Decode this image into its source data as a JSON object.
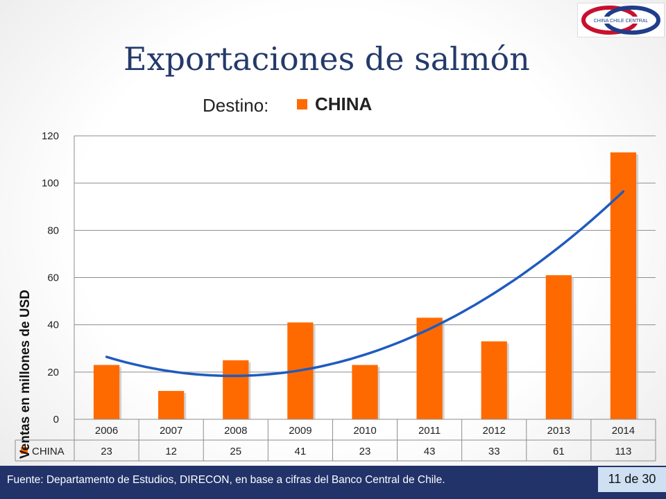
{
  "slide": {
    "title": "Exportaciones de salmón",
    "legend_prefix": "Destino:",
    "logo_text": "CHINA CHILE CENTRAL",
    "footer_source": "Fuente: Departamento de Estudios, DIRECON, en base a cifras del Banco  Central de Chile.",
    "page_number": "11 de 30",
    "colors": {
      "title": "#243a6a",
      "footer_bg": "#22336a",
      "badge_bg": "#cfe0f2",
      "logo_red": "#c8102e",
      "logo_blue": "#1f3d8a"
    }
  },
  "chart_data": {
    "type": "bar",
    "categories": [
      "2006",
      "2007",
      "2008",
      "2009",
      "2010",
      "2011",
      "2012",
      "2013",
      "2014"
    ],
    "series": [
      {
        "name": "CHINA",
        "values": [
          23,
          12,
          25,
          41,
          23,
          43,
          33,
          61,
          113
        ],
        "color": "#ff6a00"
      }
    ],
    "trendline": {
      "type": "polynomial",
      "color": "#1f5bbf"
    },
    "ylabel": "Ventas en millones de USD",
    "ylim": [
      0,
      120
    ],
    "yticks": [
      0,
      20,
      40,
      60,
      80,
      100,
      120
    ],
    "grid": true,
    "data_table": true
  }
}
